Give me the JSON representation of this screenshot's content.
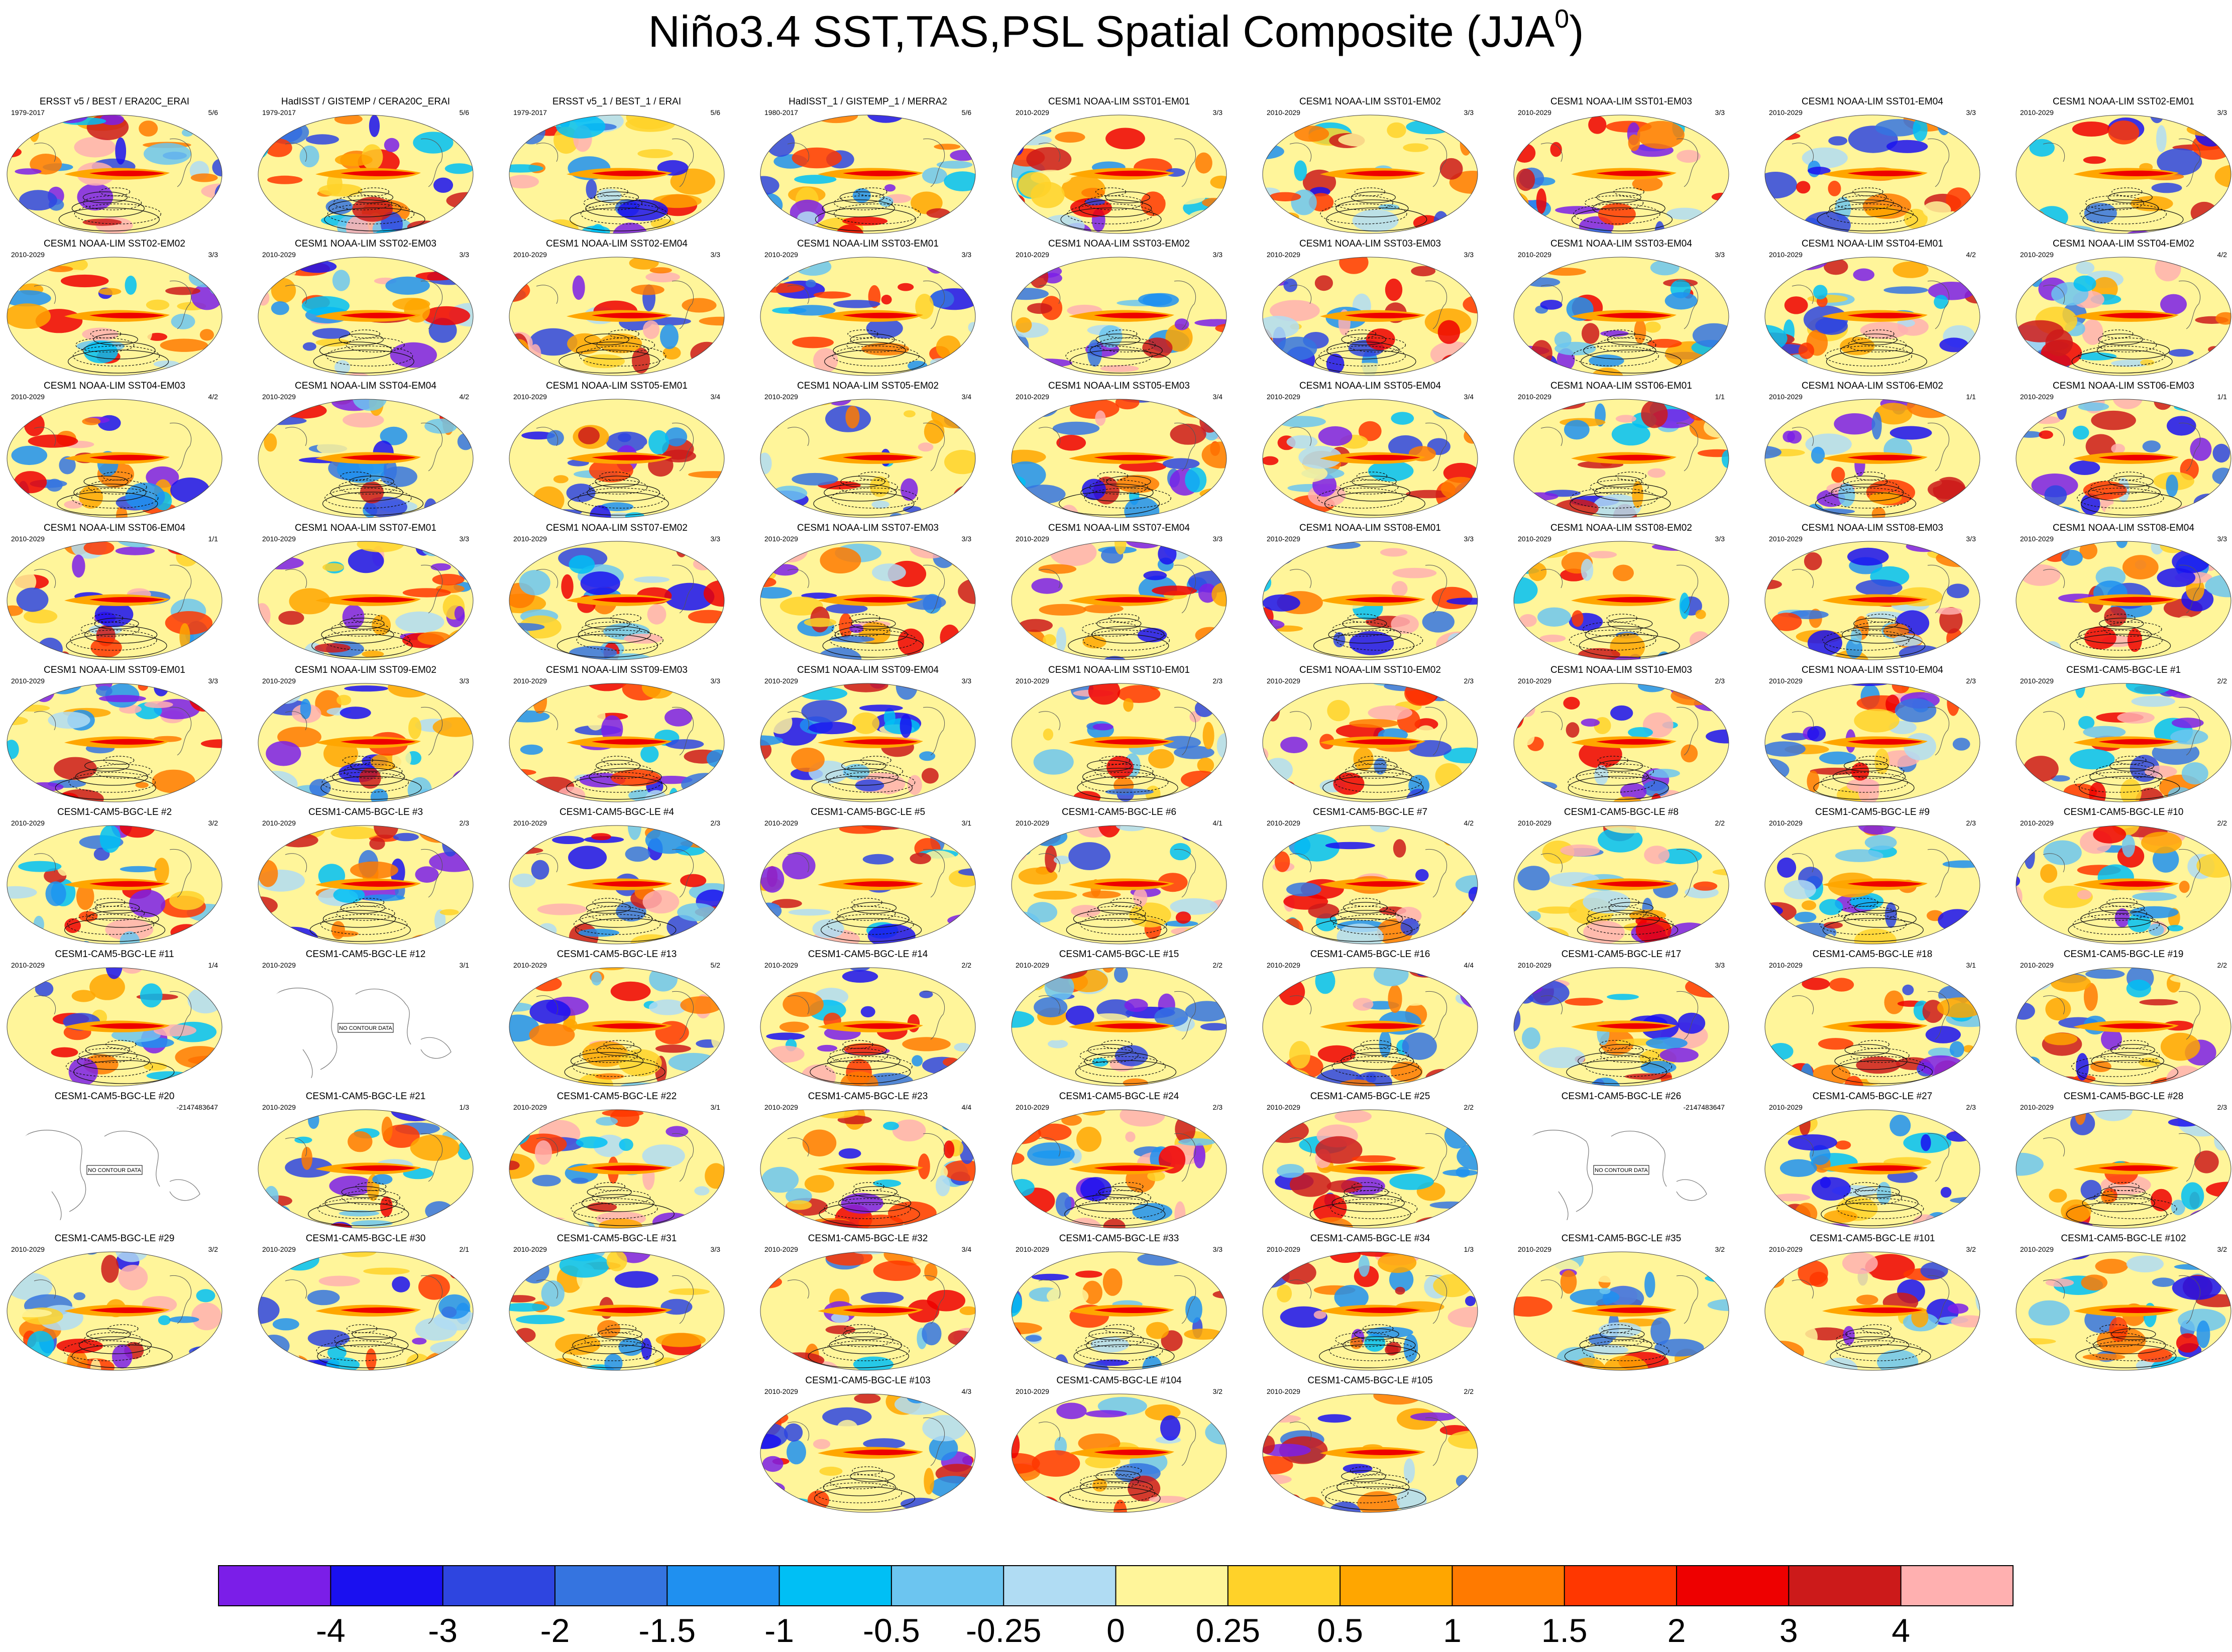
{
  "chart_data": {
    "type": "heatmap",
    "title": "Niño3.4 SST,TAS,PSL Spatial Composite (JJA",
    "title_superscript": "0",
    "panels": [
      {
        "title": "ERSST v5 / BEST / ERA20C_ERAI",
        "period": "1979-2017",
        "count": "5/6"
      },
      {
        "title": "HadISST / GISTEMP / CERA20C_ERAI",
        "period": "1979-2017",
        "count": "5/6"
      },
      {
        "title": "ERSST v5_1 / BEST_1 / ERAI",
        "period": "1979-2017",
        "count": "5/6"
      },
      {
        "title": "HadISST_1 / GISTEMP_1 / MERRA2",
        "period": "1980-2017",
        "count": "5/6"
      },
      {
        "title": "CESM1 NOAA-LIM SST01-EM01",
        "period": "2010-2029",
        "count": "3/3"
      },
      {
        "title": "CESM1 NOAA-LIM SST01-EM02",
        "period": "2010-2029",
        "count": "3/3"
      },
      {
        "title": "CESM1 NOAA-LIM SST01-EM03",
        "period": "2010-2029",
        "count": "3/3"
      },
      {
        "title": "CESM1 NOAA-LIM SST01-EM04",
        "period": "2010-2029",
        "count": "3/3"
      },
      {
        "title": "CESM1 NOAA-LIM SST02-EM01",
        "period": "2010-2029",
        "count": "3/3"
      },
      {
        "title": "CESM1 NOAA-LIM SST02-EM02",
        "period": "2010-2029",
        "count": "3/3"
      },
      {
        "title": "CESM1 NOAA-LIM SST02-EM03",
        "period": "2010-2029",
        "count": "3/3"
      },
      {
        "title": "CESM1 NOAA-LIM SST02-EM04",
        "period": "2010-2029",
        "count": "3/3"
      },
      {
        "title": "CESM1 NOAA-LIM SST03-EM01",
        "period": "2010-2029",
        "count": "3/3"
      },
      {
        "title": "CESM1 NOAA-LIM SST03-EM02",
        "period": "2010-2029",
        "count": "3/3"
      },
      {
        "title": "CESM1 NOAA-LIM SST03-EM03",
        "period": "2010-2029",
        "count": "3/3"
      },
      {
        "title": "CESM1 NOAA-LIM SST03-EM04",
        "period": "2010-2029",
        "count": "3/3"
      },
      {
        "title": "CESM1 NOAA-LIM SST04-EM01",
        "period": "2010-2029",
        "count": "4/2"
      },
      {
        "title": "CESM1 NOAA-LIM SST04-EM02",
        "period": "2010-2029",
        "count": "4/2"
      },
      {
        "title": "CESM1 NOAA-LIM SST04-EM03",
        "period": "2010-2029",
        "count": "4/2"
      },
      {
        "title": "CESM1 NOAA-LIM SST04-EM04",
        "period": "2010-2029",
        "count": "4/2"
      },
      {
        "title": "CESM1 NOAA-LIM SST05-EM01",
        "period": "2010-2029",
        "count": "3/4"
      },
      {
        "title": "CESM1 NOAA-LIM SST05-EM02",
        "period": "2010-2029",
        "count": "3/4"
      },
      {
        "title": "CESM1 NOAA-LIM SST05-EM03",
        "period": "2010-2029",
        "count": "3/4"
      },
      {
        "title": "CESM1 NOAA-LIM SST05-EM04",
        "period": "2010-2029",
        "count": "3/4"
      },
      {
        "title": "CESM1 NOAA-LIM SST06-EM01",
        "period": "2010-2029",
        "count": "1/1"
      },
      {
        "title": "CESM1 NOAA-LIM SST06-EM02",
        "period": "2010-2029",
        "count": "1/1"
      },
      {
        "title": "CESM1 NOAA-LIM SST06-EM03",
        "period": "2010-2029",
        "count": "1/1"
      },
      {
        "title": "CESM1 NOAA-LIM SST06-EM04",
        "period": "2010-2029",
        "count": "1/1"
      },
      {
        "title": "CESM1 NOAA-LIM SST07-EM01",
        "period": "2010-2029",
        "count": "3/3"
      },
      {
        "title": "CESM1 NOAA-LIM SST07-EM02",
        "period": "2010-2029",
        "count": "3/3"
      },
      {
        "title": "CESM1 NOAA-LIM SST07-EM03",
        "period": "2010-2029",
        "count": "3/3"
      },
      {
        "title": "CESM1 NOAA-LIM SST07-EM04",
        "period": "2010-2029",
        "count": "3/3"
      },
      {
        "title": "CESM1 NOAA-LIM SST08-EM01",
        "period": "2010-2029",
        "count": "3/3"
      },
      {
        "title": "CESM1 NOAA-LIM SST08-EM02",
        "period": "2010-2029",
        "count": "3/3"
      },
      {
        "title": "CESM1 NOAA-LIM SST08-EM03",
        "period": "2010-2029",
        "count": "3/3"
      },
      {
        "title": "CESM1 NOAA-LIM SST08-EM04",
        "period": "2010-2029",
        "count": "3/3"
      },
      {
        "title": "CESM1 NOAA-LIM SST09-EM01",
        "period": "2010-2029",
        "count": "3/3"
      },
      {
        "title": "CESM1 NOAA-LIM SST09-EM02",
        "period": "2010-2029",
        "count": "3/3"
      },
      {
        "title": "CESM1 NOAA-LIM SST09-EM03",
        "period": "2010-2029",
        "count": "3/3"
      },
      {
        "title": "CESM1 NOAA-LIM SST09-EM04",
        "period": "2010-2029",
        "count": "3/3"
      },
      {
        "title": "CESM1 NOAA-LIM SST10-EM01",
        "period": "2010-2029",
        "count": "2/3"
      },
      {
        "title": "CESM1 NOAA-LIM SST10-EM02",
        "period": "2010-2029",
        "count": "2/3"
      },
      {
        "title": "CESM1 NOAA-LIM SST10-EM03",
        "period": "2010-2029",
        "count": "2/3"
      },
      {
        "title": "CESM1 NOAA-LIM SST10-EM04",
        "period": "2010-2029",
        "count": "2/3"
      },
      {
        "title": "CESM1-CAM5-BGC-LE #1",
        "period": "2010-2029",
        "count": "2/2"
      },
      {
        "title": "CESM1-CAM5-BGC-LE #2",
        "period": "2010-2029",
        "count": "3/2"
      },
      {
        "title": "CESM1-CAM5-BGC-LE #3",
        "period": "2010-2029",
        "count": "2/3"
      },
      {
        "title": "CESM1-CAM5-BGC-LE #4",
        "period": "2010-2029",
        "count": "2/3"
      },
      {
        "title": "CESM1-CAM5-BGC-LE #5",
        "period": "2010-2029",
        "count": "3/1"
      },
      {
        "title": "CESM1-CAM5-BGC-LE #6",
        "period": "2010-2029",
        "count": "4/1"
      },
      {
        "title": "CESM1-CAM5-BGC-LE #7",
        "period": "2010-2029",
        "count": "4/2"
      },
      {
        "title": "CESM1-CAM5-BGC-LE #8",
        "period": "2010-2029",
        "count": "2/2"
      },
      {
        "title": "CESM1-CAM5-BGC-LE #9",
        "period": "2010-2029",
        "count": "2/3"
      },
      {
        "title": "CESM1-CAM5-BGC-LE #10",
        "period": "2010-2029",
        "count": "2/2"
      },
      {
        "title": "CESM1-CAM5-BGC-LE #11",
        "period": "2010-2029",
        "count": "1/4"
      },
      {
        "title": "CESM1-CAM5-BGC-LE #12",
        "period": "2010-2029",
        "count": "3/1",
        "nodata": true
      },
      {
        "title": "CESM1-CAM5-BGC-LE #13",
        "period": "2010-2029",
        "count": "5/2"
      },
      {
        "title": "CESM1-CAM5-BGC-LE #14",
        "period": "2010-2029",
        "count": "2/2"
      },
      {
        "title": "CESM1-CAM5-BGC-LE #15",
        "period": "2010-2029",
        "count": "2/2"
      },
      {
        "title": "CESM1-CAM5-BGC-LE #16",
        "period": "2010-2029",
        "count": "4/4"
      },
      {
        "title": "CESM1-CAM5-BGC-LE #17",
        "period": "2010-2029",
        "count": "3/3"
      },
      {
        "title": "CESM1-CAM5-BGC-LE #18",
        "period": "2010-2029",
        "count": "3/1"
      },
      {
        "title": "CESM1-CAM5-BGC-LE #19",
        "period": "2010-2029",
        "count": "2/2"
      },
      {
        "title": "CESM1-CAM5-BGC-LE #20",
        "period": "",
        "count": "-2147483647",
        "nodata": true
      },
      {
        "title": "CESM1-CAM5-BGC-LE #21",
        "period": "2010-2029",
        "count": "1/3"
      },
      {
        "title": "CESM1-CAM5-BGC-LE #22",
        "period": "2010-2029",
        "count": "3/1"
      },
      {
        "title": "CESM1-CAM5-BGC-LE #23",
        "period": "2010-2029",
        "count": "4/4"
      },
      {
        "title": "CESM1-CAM5-BGC-LE #24",
        "period": "2010-2029",
        "count": "2/3"
      },
      {
        "title": "CESM1-CAM5-BGC-LE #25",
        "period": "2010-2029",
        "count": "2/2"
      },
      {
        "title": "CESM1-CAM5-BGC-LE #26",
        "period": "",
        "count": "-2147483647",
        "nodata": true
      },
      {
        "title": "CESM1-CAM5-BGC-LE #27",
        "period": "2010-2029",
        "count": "2/3"
      },
      {
        "title": "CESM1-CAM5-BGC-LE #28",
        "period": "2010-2029",
        "count": "2/3"
      },
      {
        "title": "CESM1-CAM5-BGC-LE #29",
        "period": "2010-2029",
        "count": "3/2"
      },
      {
        "title": "CESM1-CAM5-BGC-LE #30",
        "period": "2010-2029",
        "count": "2/1"
      },
      {
        "title": "CESM1-CAM5-BGC-LE #31",
        "period": "2010-2029",
        "count": "3/3"
      },
      {
        "title": "CESM1-CAM5-BGC-LE #32",
        "period": "2010-2029",
        "count": "3/4"
      },
      {
        "title": "CESM1-CAM5-BGC-LE #33",
        "period": "2010-2029",
        "count": "3/3"
      },
      {
        "title": "CESM1-CAM5-BGC-LE #34",
        "period": "2010-2029",
        "count": "1/3"
      },
      {
        "title": "CESM1-CAM5-BGC-LE #35",
        "period": "2010-2029",
        "count": "3/2"
      },
      {
        "title": "CESM1-CAM5-BGC-LE #101",
        "period": "2010-2029",
        "count": "3/2"
      },
      {
        "title": "CESM1-CAM5-BGC-LE #102",
        "period": "2010-2029",
        "count": "3/2"
      },
      {
        "title": "CESM1-CAM5-BGC-LE #103",
        "period": "2010-2029",
        "count": "4/3"
      },
      {
        "title": "CESM1-CAM5-BGC-LE #104",
        "period": "2010-2029",
        "count": "3/2"
      },
      {
        "title": "CESM1-CAM5-BGC-LE #105",
        "period": "2010-2029",
        "count": "2/2"
      }
    ],
    "nodata_label": "NO CONTOUR DATA",
    "colorbar": {
      "tick_labels": [
        "-4",
        "-3",
        "-2",
        "-1.5",
        "-1",
        "-0.5",
        "-0.25",
        "0",
        "0.25",
        "0.5",
        "1",
        "1.5",
        "2",
        "3",
        "4"
      ],
      "colors": [
        "#7b1ee8",
        "#1a10f0",
        "#2e45e0",
        "#3574e0",
        "#1f90f0",
        "#00bff5",
        "#6cc5f0",
        "#b0dcf3",
        "#fff59a",
        "#ffd229",
        "#ffa600",
        "#ff7a00",
        "#ff3700",
        "#ee0000",
        "#cc1a1a",
        "#ffb0b0"
      ]
    }
  }
}
